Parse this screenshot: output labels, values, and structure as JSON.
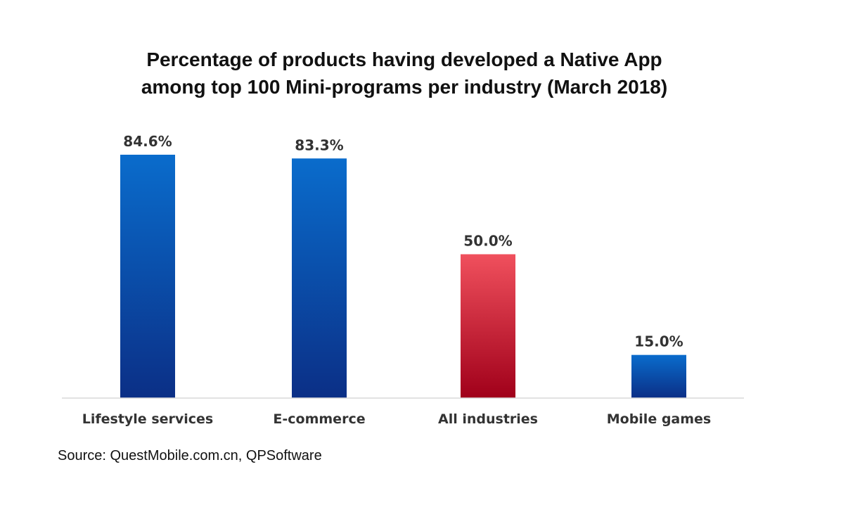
{
  "chart_data": {
    "type": "bar",
    "title_lines": [
      "Percentage of products having developed a Native App",
      "among top 100 Mini-programs per industry (March 2018)"
    ],
    "categories": [
      "Lifestyle services",
      "E-commerce",
      "All industries",
      "Mobile games"
    ],
    "values": [
      84.6,
      83.3,
      50.0,
      15.0
    ],
    "data_labels": [
      "84.6%",
      "83.3%",
      "50.0%",
      "15.0%"
    ],
    "bar_styles": [
      "blue",
      "blue",
      "red",
      "blue"
    ],
    "ylim": [
      0,
      100
    ],
    "xlabel": "",
    "ylabel": "",
    "grid": false,
    "legend": "none",
    "source": "Source: QuestMobile.com.cn, QPSoftware"
  },
  "colors": {
    "blue_top": "#0a6ccc",
    "blue_bottom": "#0b2f86",
    "red_top": "#f0505d",
    "red_bottom": "#a0001a",
    "axis": "#d9d9d9"
  }
}
